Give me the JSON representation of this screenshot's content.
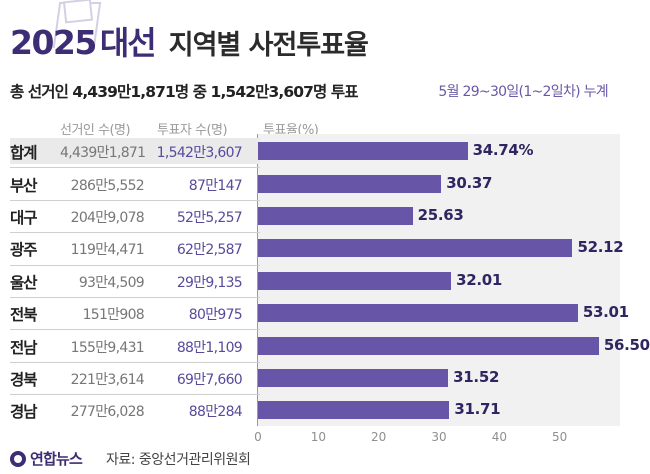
{
  "header": {
    "year": "2025",
    "election": "대선",
    "subtitle": "지역별 사전투표율"
  },
  "summary": "총 선거인 4,439만1,871명 중 1,542만3,607명 투표",
  "period": "5월 29~30일(1~2일차) 누계",
  "columns": {
    "voters": "선거인 수(명)",
    "ballots": "투표자 수(명)",
    "rate": "투표율(%)"
  },
  "chart_data": {
    "type": "bar",
    "orientation": "horizontal",
    "categories": [
      "합계",
      "부산",
      "대구",
      "광주",
      "울산",
      "전북",
      "전남",
      "경북",
      "경남"
    ],
    "voters": [
      "4,439만1,871",
      "286만5,552",
      "204만9,078",
      "119만4,471",
      "93만4,509",
      "151만908",
      "155만9,431",
      "221만3,614",
      "277만6,028"
    ],
    "ballots": [
      "1,542만3,607",
      "87만147",
      "52만5,257",
      "62만2,587",
      "29만9,135",
      "80만975",
      "88만1,109",
      "69만7,660",
      "88만284"
    ],
    "values": [
      34.74,
      30.37,
      25.63,
      52.12,
      32.01,
      53.01,
      56.5,
      31.52,
      31.71
    ],
    "value_labels": [
      "34.74%",
      "30.37",
      "25.63",
      "52.12",
      "32.01",
      "53.01",
      "56.50",
      "31.52",
      "31.71"
    ],
    "xlim": [
      0,
      60
    ],
    "xticks": [
      "0",
      "10",
      "20",
      "30",
      "40",
      "50"
    ],
    "bar_color": "#6756a8"
  },
  "footer": {
    "logo": "연합뉴스",
    "source": "자료: 중앙선거관리위원회"
  },
  "colors": {
    "title": "#3d2d74",
    "accent": "#6756a8",
    "period": "#6a58a8"
  }
}
